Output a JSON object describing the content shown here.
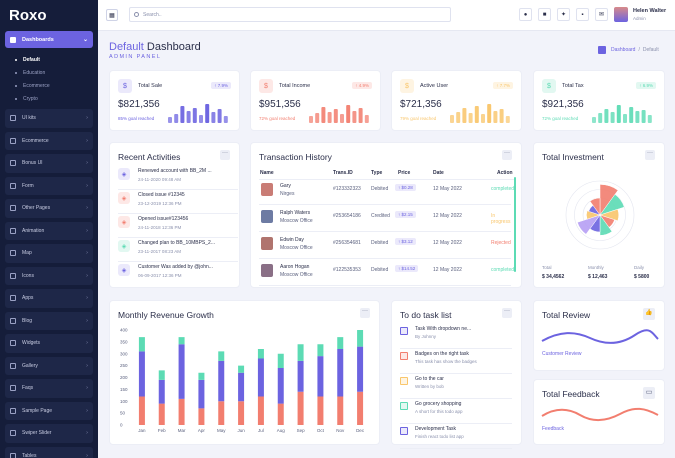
{
  "app": {
    "logo": "Roxo"
  },
  "sidebar": {
    "active": "Dashboards",
    "subitems": [
      "Default",
      "Education",
      "Ecommerce",
      "Crypto"
    ],
    "items": [
      "UI kits",
      "Ecommerce",
      "Bonus UI",
      "Form",
      "Other Pages",
      "Animation",
      "Map",
      "Icons",
      "Apps",
      "Blog",
      "Widgets",
      "Gallery",
      "Faqs",
      "Sample Page",
      "Swiper Slider",
      "Tables"
    ]
  },
  "topbar": {
    "search_placeholder": "Search..",
    "user_name": "Helen Walter",
    "user_role": "Admin"
  },
  "page": {
    "title_highlight": "Default",
    "title_rest": "Dashboard",
    "subtitle": "ADMIN PANEL"
  },
  "breadcrumb": {
    "current": "Dashboard",
    "page": "Default"
  },
  "stats": [
    {
      "name": "Total Sale",
      "change": "7.9%",
      "value": "$821,356",
      "goal": "85% goal reached",
      "color": "#6c63e0",
      "bg": "#ebe9fb",
      "bars": [
        0.3,
        0.45,
        0.85,
        0.6,
        0.75,
        0.4,
        0.95,
        0.55,
        0.7,
        0.35
      ]
    },
    {
      "name": "Total Income",
      "change": "4.9%",
      "value": "$951,356",
      "goal": "72% goal reached",
      "color": "#f27e6f",
      "bg": "#fde8e6",
      "bars": [
        0.35,
        0.5,
        0.8,
        0.55,
        0.7,
        0.45,
        0.9,
        0.6,
        0.75,
        0.4
      ]
    },
    {
      "name": "Active User",
      "change": "7.7%",
      "value": "$721,356",
      "goal": "79% goal reached",
      "color": "#f9c66c",
      "bg": "#fef4e2",
      "bars": [
        0.4,
        0.55,
        0.75,
        0.5,
        0.85,
        0.45,
        0.95,
        0.6,
        0.7,
        0.35
      ]
    },
    {
      "name": "Total Tax",
      "change": "6.9%",
      "value": "$921,356",
      "goal": "72% goal reached",
      "color": "#5cdbb4",
      "bg": "#e2f8f1",
      "bars": [
        0.3,
        0.5,
        0.7,
        0.55,
        0.9,
        0.45,
        0.8,
        0.6,
        0.65,
        0.4
      ]
    }
  ],
  "activities": {
    "title": "Recent Activities",
    "items": [
      {
        "text": "Renewed account with BB_2M ...",
        "date": "24-11-2020 09:48 AM",
        "color": "#6c63e0",
        "bg": "#ebe9fb"
      },
      {
        "text": "Closed issue #12345",
        "date": "23-12-2019 12:36 PM",
        "color": "#f27e6f",
        "bg": "#fde8e6"
      },
      {
        "text": "Opened issue#123456",
        "date": "24-11-2018 12:36 PM",
        "color": "#f27e6f",
        "bg": "#fde8e6"
      },
      {
        "text": "Changed plan to BB_10MBPS_2...",
        "date": "23-11-2017 08:23 AM",
        "color": "#5cdbb4",
        "bg": "#e2f8f1"
      },
      {
        "text": "Customer Was added by @john...",
        "date": "06-09-2017 12:36 PM",
        "color": "#6c63e0",
        "bg": "#ebe9fb"
      }
    ]
  },
  "transactions": {
    "title": "Transaction History",
    "headers": [
      "Name",
      "Trans.ID",
      "Type",
      "Price",
      "Date",
      "Action"
    ],
    "rows": [
      {
        "name": "Gary",
        "loc": "Nirges",
        "id": "#123332323",
        "type": "Debited",
        "price": "$0.28",
        "date": "12 May 2022",
        "action": "completed",
        "acolor": "#5cdbb4",
        "avatar": "#c97c75"
      },
      {
        "name": "Ralph Waters",
        "loc": "Moscow Office",
        "id": "#253654186",
        "type": "Credited",
        "price": "$2.15",
        "date": "12 May 2022",
        "action": "In progress",
        "acolor": "#f9c66c",
        "avatar": "#6d7ba3"
      },
      {
        "name": "Edwin Day",
        "loc": "Moscow Office",
        "id": "#256354681",
        "type": "Debited",
        "price": "$3.12",
        "date": "12 May 2022",
        "action": "Rejected",
        "acolor": "#f27e6f",
        "avatar": "#b0746e"
      },
      {
        "name": "Aaron Hogan",
        "loc": "Moscow Office",
        "id": "#122535353",
        "type": "Debited",
        "price": "$14.52",
        "date": "12 May 2022",
        "action": "completed",
        "acolor": "#5cdbb4",
        "avatar": "#8a6f86"
      }
    ]
  },
  "investment": {
    "title": "Total Investment",
    "totals": [
      {
        "label": "Total",
        "value": "$ 34,4562"
      },
      {
        "label": "Monthly",
        "value": "$ 12,463"
      },
      {
        "label": "Daily",
        "value": "$ 5800"
      }
    ]
  },
  "revenue": {
    "title": "Monthly Revenue Growth"
  },
  "todo": {
    "title": "To do task list",
    "items": [
      {
        "title": "Task With dropdown ne...",
        "sub": "By Johnny",
        "color": "#6c63e0",
        "bg": "#ebe9fb"
      },
      {
        "title": "Badges on the right task",
        "sub": "This task has show the badges",
        "color": "#f27e6f",
        "bg": "#fde8e6"
      },
      {
        "title": "Go to the car",
        "sub": "Written by bob",
        "color": "#f9c66c",
        "bg": "#fef4e2"
      },
      {
        "title": "Go grocery shopping",
        "sub": "A short for this todo app",
        "color": "#5cdbb4",
        "bg": "#e2f8f1"
      },
      {
        "title": "Development Task",
        "sub": "Finish react todo list app",
        "color": "#6c63e0",
        "bg": "#ebe9fb"
      }
    ]
  },
  "review": {
    "title": "Total Review",
    "label": "Customer Review"
  },
  "feedback": {
    "title": "Total Feedback",
    "label": "Feedback"
  },
  "chart_data": [
    {
      "type": "bar",
      "title": "Monthly Revenue Growth",
      "stacked": true,
      "categories": [
        "Jan",
        "Feb",
        "Mar",
        "Apr",
        "May",
        "Jun",
        "Jul",
        "Aug",
        "Sep",
        "Oct",
        "Nov",
        "Dec"
      ],
      "yticks": [
        0,
        50,
        100,
        150,
        200,
        250,
        300,
        350,
        400
      ],
      "ylim": [
        0,
        400
      ],
      "series": [
        {
          "values": [
            120,
            90,
            110,
            70,
            100,
            100,
            120,
            90,
            140,
            120,
            120,
            140
          ],
          "color": "#f27e6f"
        },
        {
          "values": [
            190,
            100,
            230,
            120,
            170,
            120,
            160,
            150,
            130,
            170,
            200,
            190
          ],
          "color": "#6c63e0"
        },
        {
          "values": [
            60,
            40,
            30,
            30,
            40,
            30,
            40,
            60,
            70,
            50,
            50,
            70
          ],
          "color": "#5cdbb4"
        }
      ]
    },
    {
      "type": "pie",
      "title": "Total Investment",
      "values": [
        0.9,
        0.75,
        0.55,
        0.45,
        0.6,
        0.5,
        0.7,
        0.4,
        0.35,
        0.5
      ],
      "colors": [
        "#f27e6f",
        "#5cdbb4",
        "#f9c66c",
        "#f27e6f",
        "#5cdbb4",
        "#6c63e0",
        "#b69ff5",
        "#f9c66c",
        "#6c63e0",
        "#f27e6f"
      ]
    }
  ]
}
